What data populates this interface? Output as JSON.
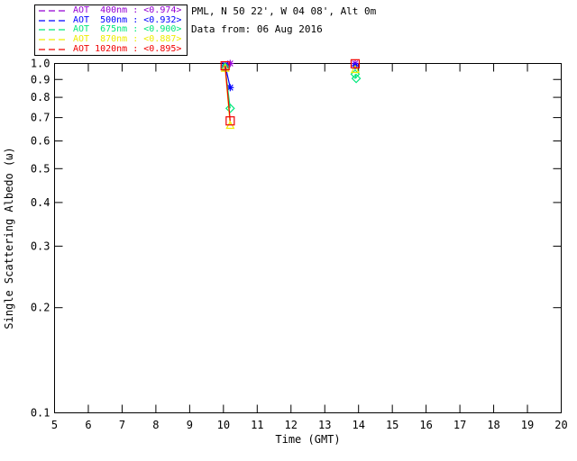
{
  "header": {
    "site_line": "PML, N 50 22', W 04 08', Alt 0m",
    "date_line": "Data from: 06 Aug 2016"
  },
  "chart_data": {
    "type": "line",
    "title": "",
    "xlabel": "Time (GMT)",
    "ylabel": "Single Scattering Albedo (ω)",
    "x_axis": {
      "min": 5,
      "max": 20,
      "ticks": [
        5,
        6,
        7,
        8,
        9,
        10,
        11,
        12,
        13,
        14,
        15,
        16,
        17,
        18,
        19,
        20
      ]
    },
    "y_axis": {
      "scale": "log",
      "min": 0.1,
      "max": 1.0,
      "ticks": [
        1.0,
        0.9,
        0.8,
        0.7,
        0.6,
        0.5,
        0.4,
        0.3,
        0.2,
        0.1
      ],
      "tick_labels": [
        "1.0",
        "0.9",
        "0.8",
        "0.7",
        "0.6",
        "0.5",
        "0.4",
        "0.3",
        "0.2",
        "0.1"
      ]
    },
    "legend_position": "top-left",
    "series": [
      {
        "name": "AOT 400nm",
        "legend_label": "AOT  400nm : <0.974>",
        "mean_value": "<0.974>",
        "color": "#9400D3",
        "marker": "asterisk",
        "points": [
          [
            10.05,
            0.99
          ],
          [
            10.2,
            1.0
          ],
          [
            13.9,
            1.0
          ]
        ]
      },
      {
        "name": "AOT 500nm",
        "legend_label": "AOT  500nm : <0.932>",
        "mean_value": "<0.932>",
        "color": "#0000FF",
        "marker": "asterisk",
        "points": [
          [
            10.05,
            0.99
          ],
          [
            10.2,
            0.853
          ],
          [
            13.9,
            0.985
          ]
        ]
      },
      {
        "name": "AOT 675nm",
        "legend_label": "AOT  675nm : <0.900>",
        "mean_value": "<0.900>",
        "color": "#00E87C",
        "marker": "diamond",
        "points": [
          [
            10.05,
            0.975
          ],
          [
            10.2,
            0.744
          ],
          [
            13.9,
            0.932
          ],
          [
            13.93,
            0.906
          ]
        ]
      },
      {
        "name": "AOT 870nm",
        "legend_label": "AOT  870nm : <0.887>",
        "mean_value": "<0.887>",
        "color": "#EDED00",
        "marker": "triangle",
        "points": [
          [
            10.05,
            0.97
          ],
          [
            10.2,
            0.666
          ],
          [
            13.9,
            0.962
          ]
        ]
      },
      {
        "name": "AOT 1020nm",
        "legend_label": "AOT 1020nm : <0.895>",
        "mean_value": "<0.895>",
        "color": "#F00000",
        "marker": "square",
        "points": [
          [
            10.05,
            0.985
          ],
          [
            10.2,
            0.685
          ],
          [
            13.9,
            0.998
          ]
        ]
      }
    ]
  }
}
